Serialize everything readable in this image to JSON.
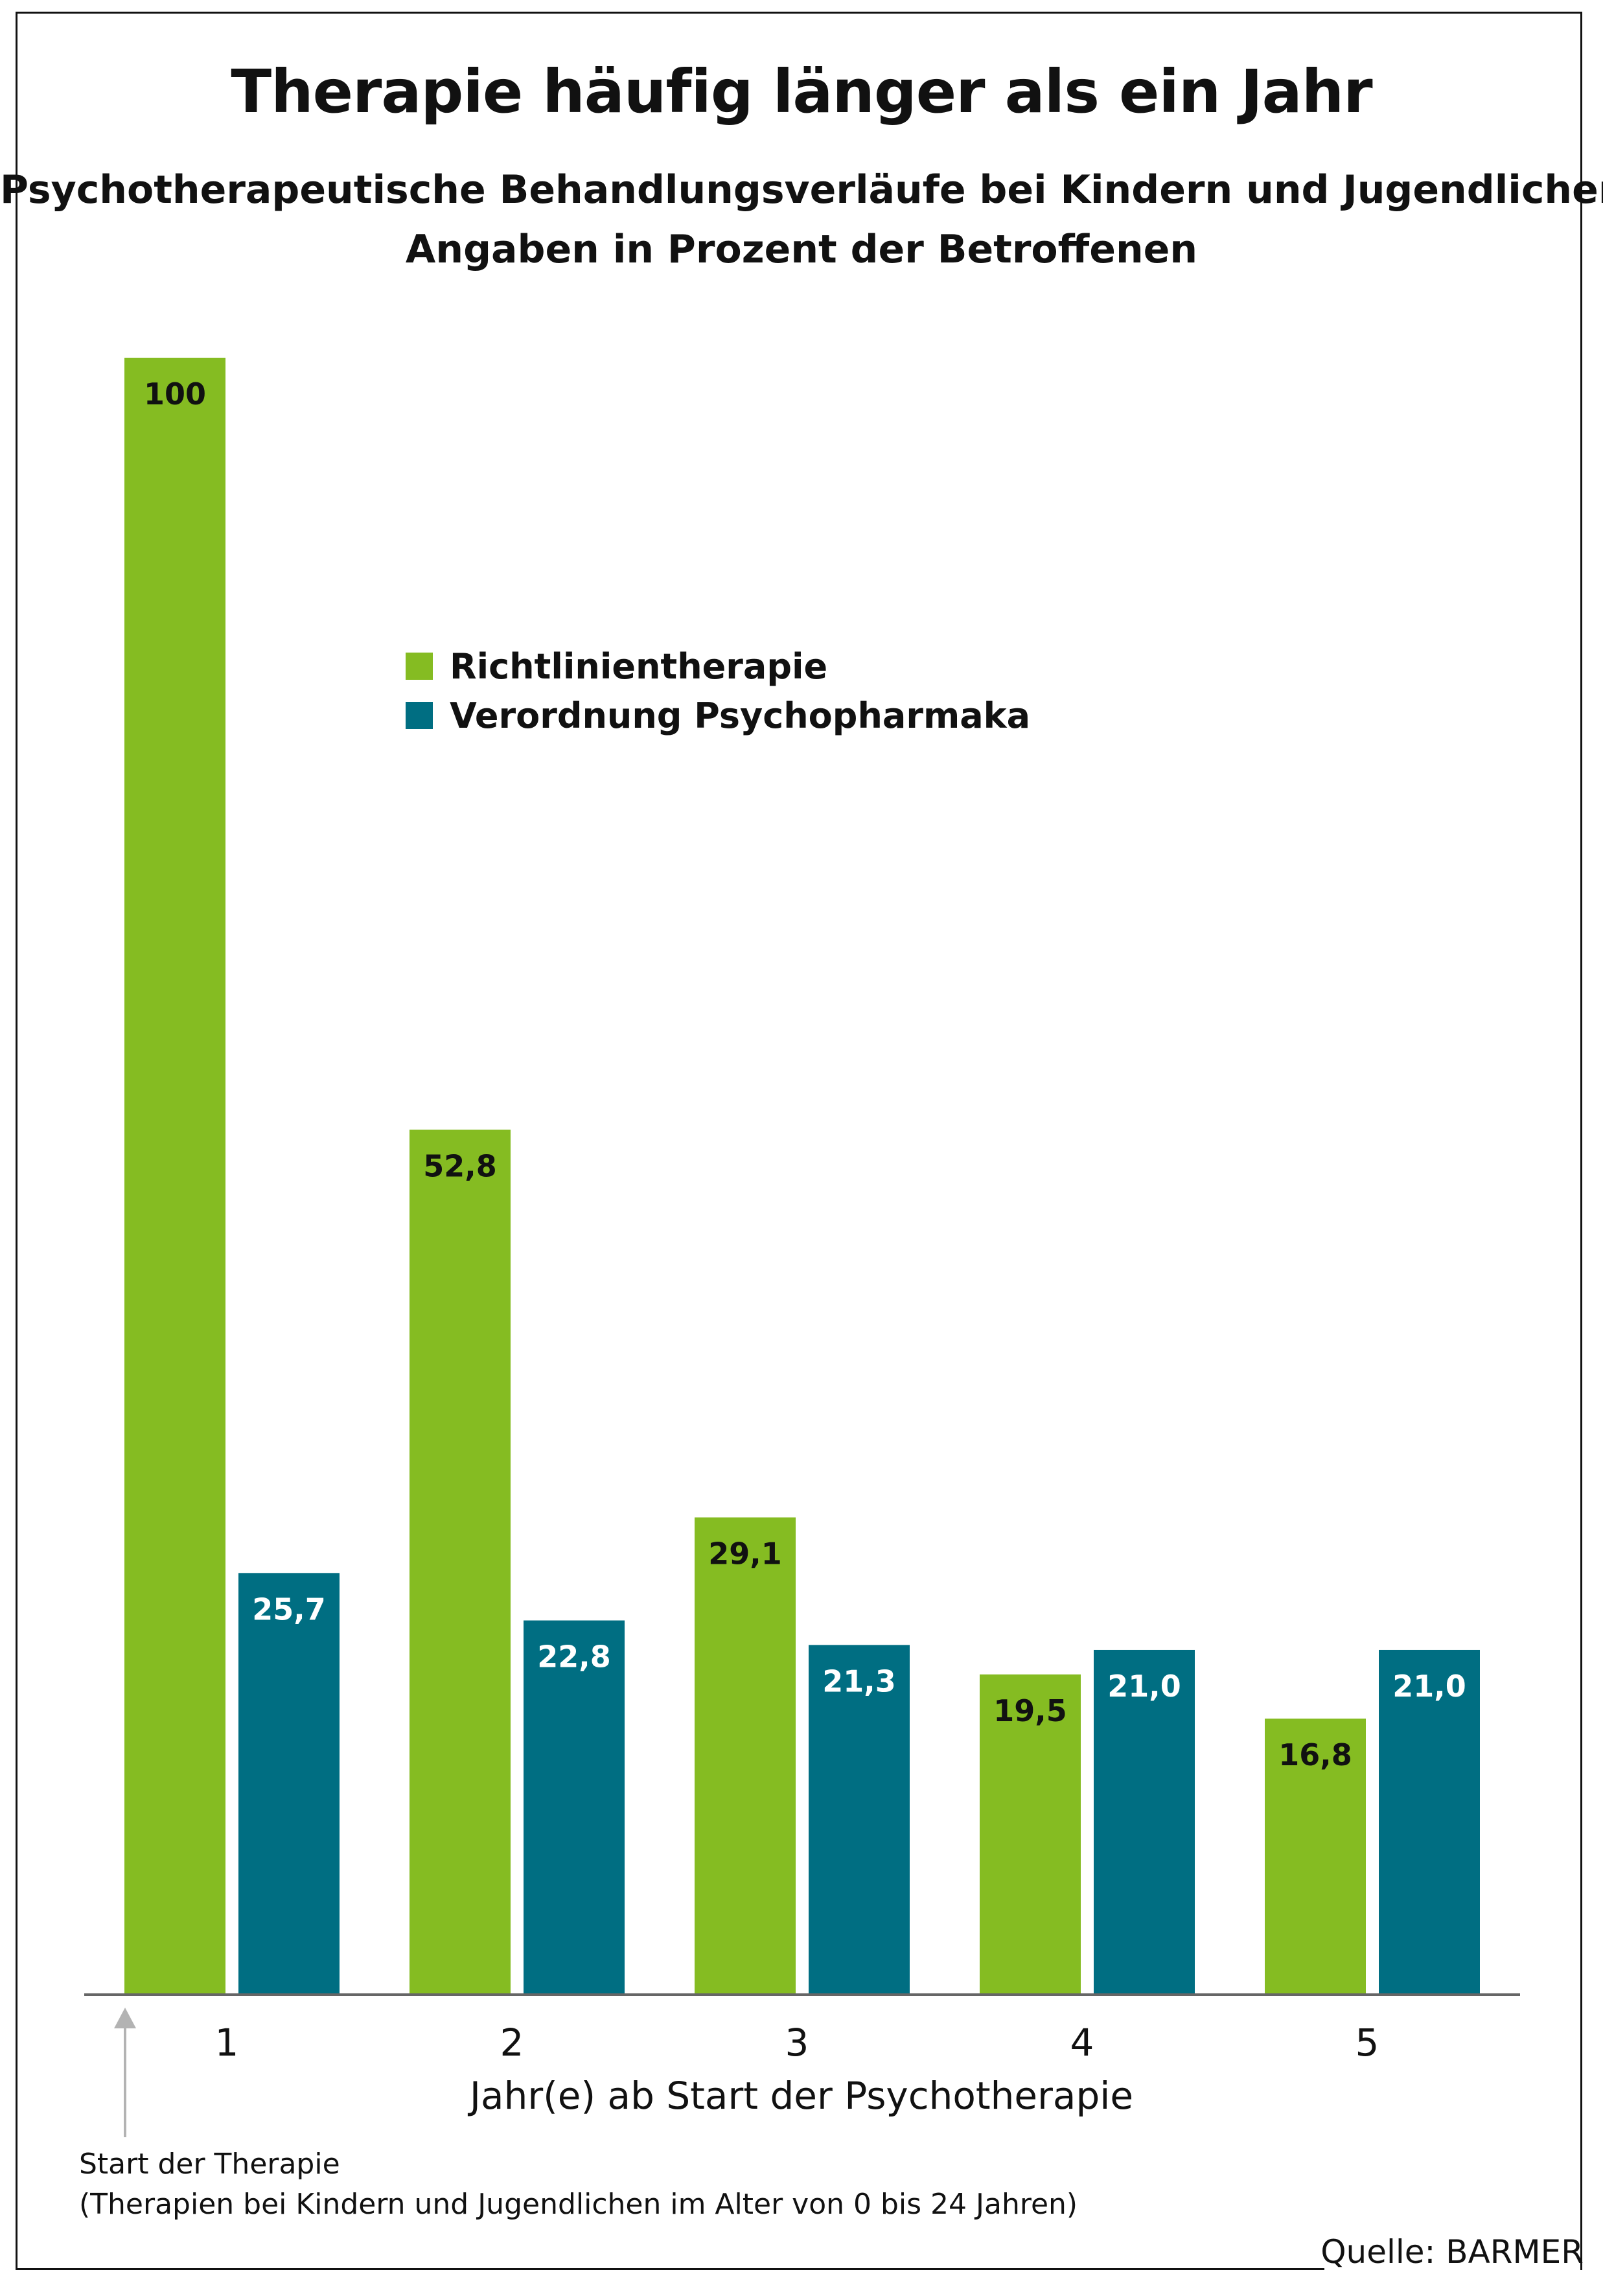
{
  "title": "Therapie häufig länger als ein Jahr",
  "subtitle_line1": "Psychotherapeutische Behandlungsverläufe bei Kindern und Jugendlichen,",
  "subtitle_line2": "Angaben in Prozent der Betroffenen",
  "note_line1": "Start der Therapie",
  "note_line2": "(Therapien bei Kindern und Jugendlichen im Alter von 0 bis 24 Jahren)",
  "source": "Quelle: BARMER",
  "colors": {
    "green": "#85bc22",
    "teal": "#006e82",
    "axis": "#666666",
    "arrow": "#b3b3b3"
  },
  "chart_data": {
    "type": "bar",
    "title": "Therapie häufig länger als ein Jahr",
    "xlabel": "Jahr(e) ab Start der Psychotherapie",
    "ylabel": "",
    "ylim": [
      0,
      100
    ],
    "grid": false,
    "legend_position": "top-left",
    "categories": [
      "1",
      "2",
      "3",
      "4",
      "5"
    ],
    "series": [
      {
        "name": "Richtlinientherapie",
        "color": "#85bc22",
        "values": [
          100,
          52.8,
          29.1,
          19.5,
          16.8
        ],
        "labels": [
          "100",
          "52,8",
          "29,1",
          "19,5",
          "16,8"
        ],
        "label_color": "#111111"
      },
      {
        "name": "Verordnung Psychopharmaka",
        "color": "#006e82",
        "values": [
          25.7,
          22.8,
          21.3,
          21.0,
          21.0
        ],
        "labels": [
          "25,7",
          "22,8",
          "21,3",
          "21,0",
          "21,0"
        ],
        "label_color": "#ffffff"
      }
    ]
  }
}
